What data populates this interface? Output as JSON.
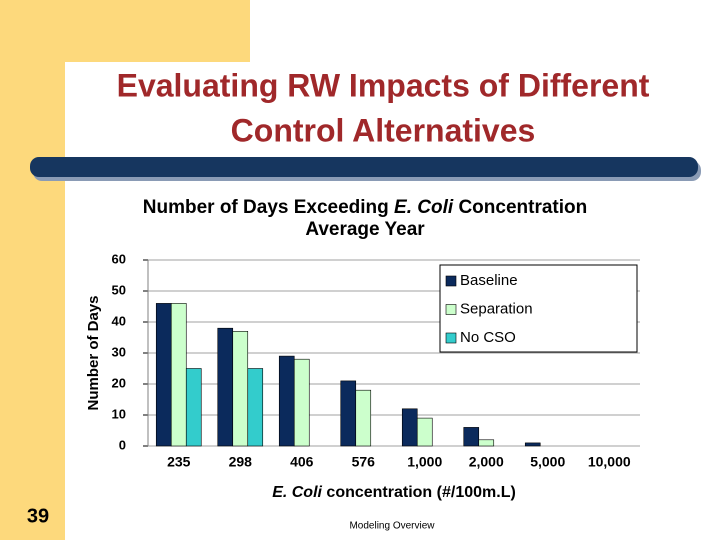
{
  "slide": {
    "title": [
      "Evaluating RW Impacts of Different",
      "Control Alternatives"
    ],
    "number": "39",
    "footer": "Modeling Overview"
  },
  "chart_data": {
    "type": "bar",
    "title": [
      "Number of Days Exceeding ",
      "E. Coli",
      " Concentration"
    ],
    "subtitle": "Average Year",
    "x_label": [
      "E. Coli",
      " concentration (#/100m.L)"
    ],
    "y_label": "Number of Days",
    "categories": [
      "235",
      "298",
      "406",
      "576",
      "1,000",
      "2,000",
      "5,000",
      "10,000"
    ],
    "series": [
      {
        "name": "Baseline",
        "color": "#0b2a5c",
        "values": [
          46,
          38,
          29,
          21,
          12,
          6,
          1,
          0
        ]
      },
      {
        "name": "Separation",
        "color": "#ccffcc",
        "values": [
          46,
          37,
          28,
          18,
          9,
          2,
          0,
          0
        ]
      },
      {
        "name": "No CSO",
        "color": "#33cccc",
        "values": [
          25,
          25,
          0,
          0,
          0,
          0,
          0,
          0
        ]
      }
    ],
    "ylim": [
      0,
      60
    ],
    "yticks": [
      0,
      10,
      20,
      30,
      40,
      50,
      60
    ],
    "grid": true,
    "legend": "upper right"
  }
}
